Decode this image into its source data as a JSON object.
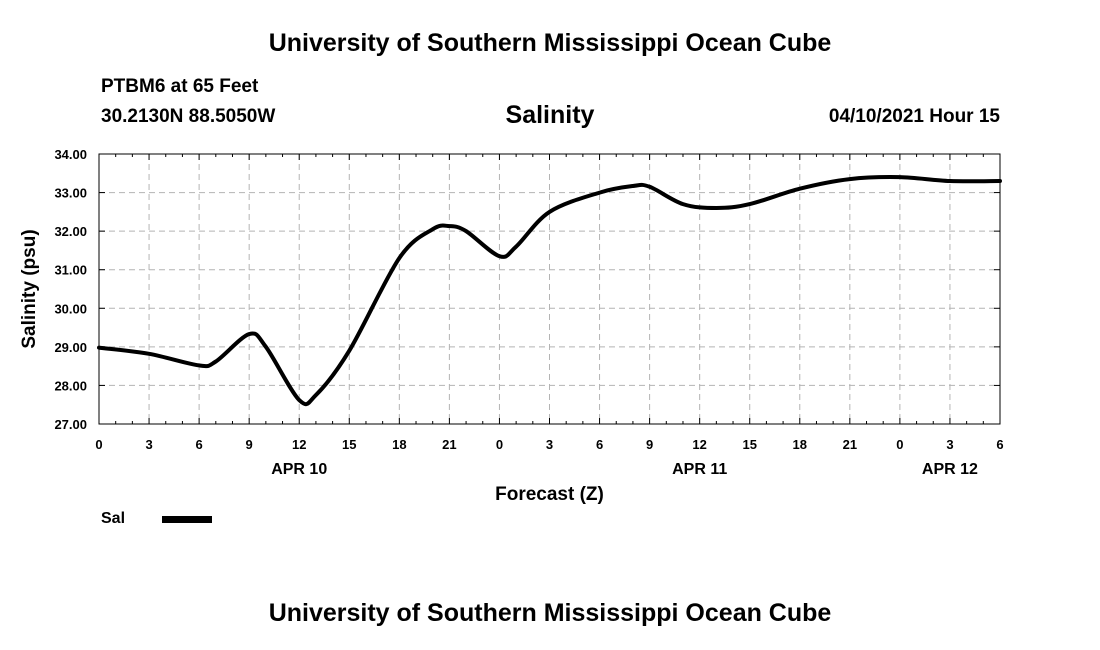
{
  "header": {
    "top_title": "University of Southern Mississippi Ocean Cube",
    "station": "PTBM6 at 65 Feet",
    "coords": "30.2130N  88.5050W",
    "date": "04/10/2021 Hour 15",
    "bottom_title": "University of Southern Mississippi Ocean Cube"
  },
  "chart_data": {
    "type": "line",
    "title": "Salinity",
    "xlabel": "Forecast (Z)",
    "ylabel": "Salinity (psu)",
    "ylim": [
      27.0,
      34.0
    ],
    "xlim": [
      0,
      54
    ],
    "grid": true,
    "x_ticks": [
      {
        "x": 0,
        "label": "0"
      },
      {
        "x": 3,
        "label": "3"
      },
      {
        "x": 6,
        "label": "6"
      },
      {
        "x": 9,
        "label": "9"
      },
      {
        "x": 12,
        "label": "12"
      },
      {
        "x": 15,
        "label": "15"
      },
      {
        "x": 18,
        "label": "18"
      },
      {
        "x": 21,
        "label": "21"
      },
      {
        "x": 24,
        "label": "0"
      },
      {
        "x": 27,
        "label": "3"
      },
      {
        "x": 30,
        "label": "6"
      },
      {
        "x": 33,
        "label": "9"
      },
      {
        "x": 36,
        "label": "12"
      },
      {
        "x": 39,
        "label": "15"
      },
      {
        "x": 42,
        "label": "18"
      },
      {
        "x": 45,
        "label": "21"
      },
      {
        "x": 48,
        "label": "0"
      },
      {
        "x": 51,
        "label": "3"
      },
      {
        "x": 54,
        "label": "6"
      }
    ],
    "y_ticks": [
      "27.00",
      "28.00",
      "29.00",
      "30.00",
      "31.00",
      "32.00",
      "33.00",
      "34.00"
    ],
    "date_labels": [
      {
        "x": 12,
        "label": "APR 10"
      },
      {
        "x": 36,
        "label": "APR 11"
      },
      {
        "x": 51,
        "label": "APR 12"
      }
    ],
    "legend": [
      {
        "name": "Sal",
        "color": "#000000"
      }
    ],
    "series": [
      {
        "name": "Sal",
        "color": "#000000",
        "x": [
          0,
          3,
          6,
          7,
          9,
          10,
          12,
          13,
          15,
          18,
          20,
          21,
          22,
          24,
          25,
          27,
          30,
          32,
          33,
          35,
          37,
          39,
          42,
          45,
          48,
          51,
          54
        ],
        "values": [
          28.98,
          28.82,
          28.52,
          28.62,
          29.33,
          29.0,
          27.62,
          27.75,
          28.9,
          31.3,
          32.05,
          32.13,
          32.0,
          31.35,
          31.6,
          32.5,
          33.0,
          33.17,
          33.15,
          32.7,
          32.6,
          32.7,
          33.1,
          33.35,
          33.4,
          33.3,
          33.3
        ]
      }
    ]
  }
}
